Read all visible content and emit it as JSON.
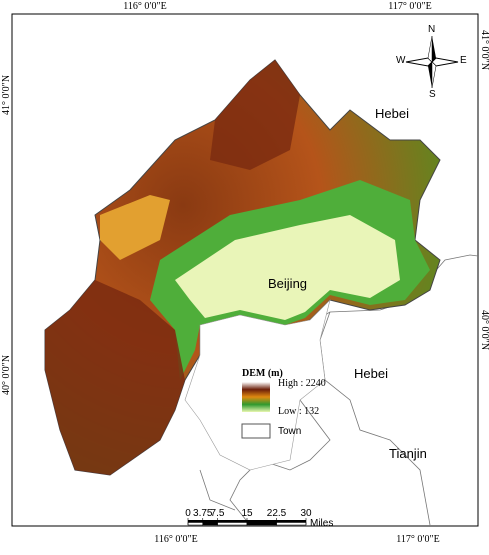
{
  "map": {
    "graticule": {
      "top": [
        "116° 0′0″E",
        "117° 0′0″E"
      ],
      "bottom": [
        "116° 0′0″E",
        "117° 0′0″E"
      ],
      "left": [
        "41° 0′0″N",
        "40° 0′0″N"
      ],
      "right": [
        "41° 0′0″N",
        "40° 0′0″N"
      ]
    },
    "compass": {
      "n": "N",
      "s": "S",
      "w": "W",
      "e": "E"
    },
    "regions": [
      "Hebei",
      "Beijing",
      "Hebei",
      "Tianjin"
    ],
    "legend": {
      "title": "DEM  (m)",
      "high": "High : 2240",
      "low": "Low : 132",
      "town": "Town"
    },
    "scale_bar": {
      "ticks": [
        0,
        3.75,
        7.5,
        15,
        22.5,
        30
      ],
      "unit": "Miles"
    }
  }
}
